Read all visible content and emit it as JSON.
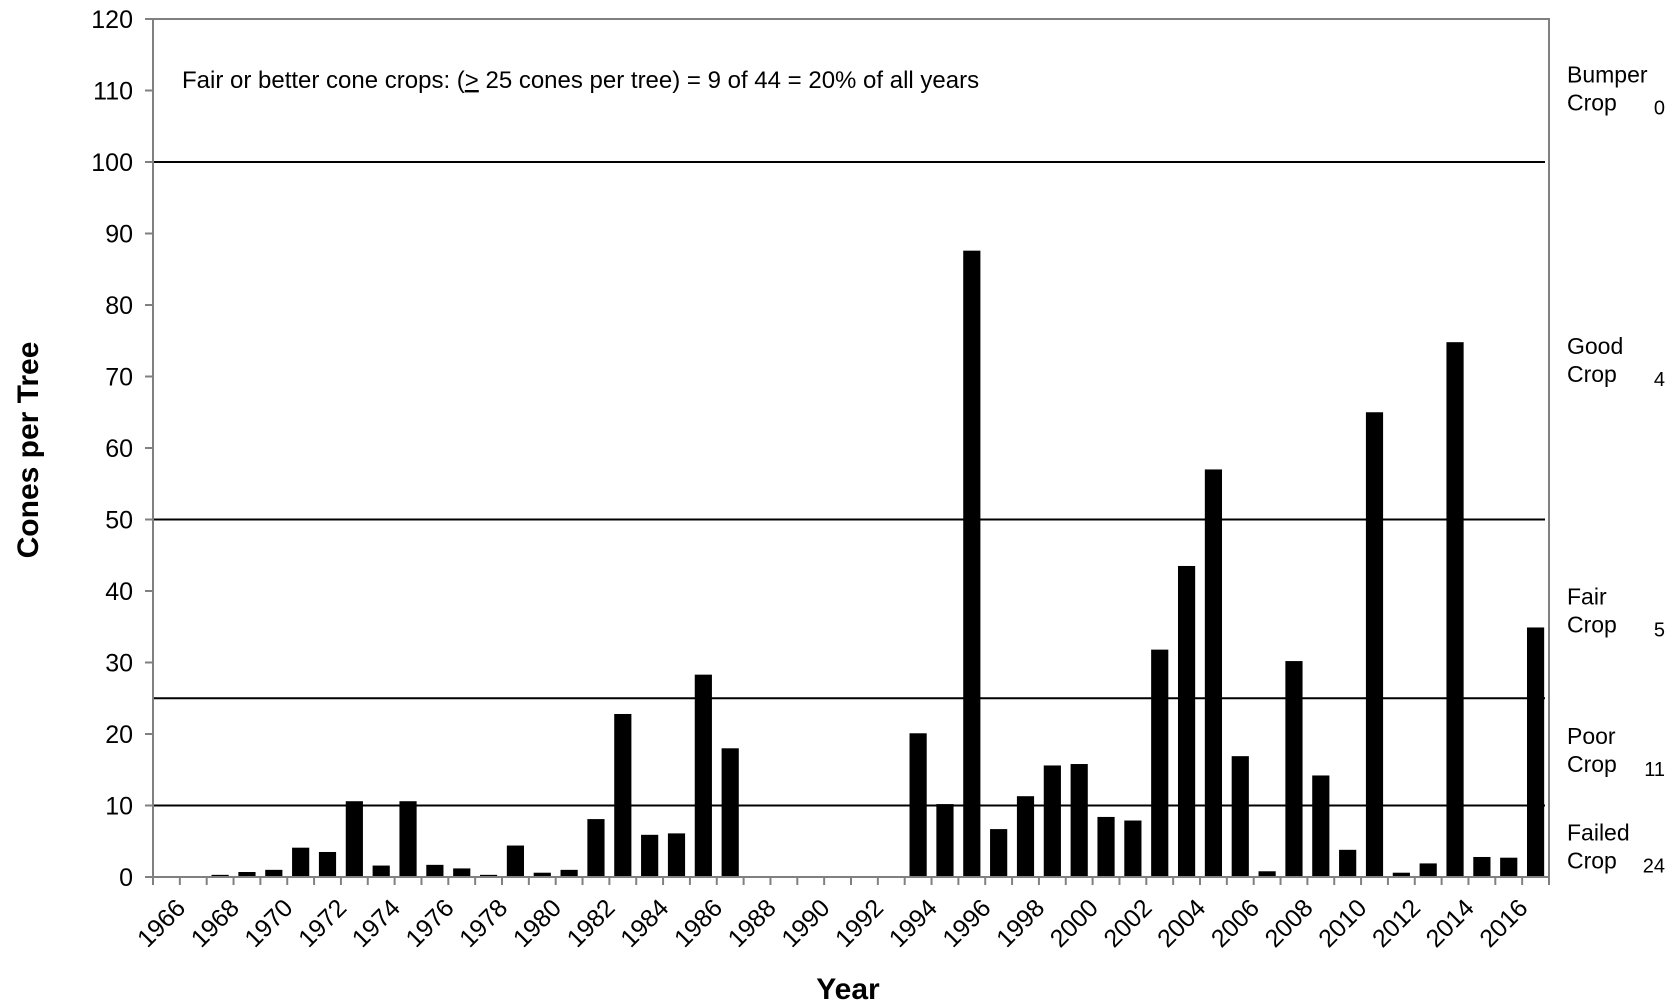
{
  "chart_data": {
    "type": "bar",
    "title": "",
    "xlabel": "Year",
    "ylabel": "Cones per Tree",
    "ylim": [
      0,
      120
    ],
    "yticks": [
      "0",
      "10",
      "20",
      "30",
      "40",
      "50",
      "60",
      "70",
      "80",
      "90",
      "100",
      "110",
      "120"
    ],
    "grid": false,
    "bar_color": "#000000",
    "xtick_labels": [
      "1966",
      "1968",
      "1970",
      "1972",
      "1974",
      "1976",
      "1978",
      "1980",
      "1982",
      "1984",
      "1986",
      "1988",
      "1990",
      "1992",
      "1994",
      "1996",
      "1998",
      "2000",
      "2002",
      "2004",
      "2006",
      "2008",
      "2010",
      "2012",
      "2014",
      "2016"
    ],
    "categories": [
      "1966",
      "1967",
      "1968",
      "1969",
      "1970",
      "1971",
      "1972",
      "1973",
      "1974",
      "1975",
      "1976",
      "1977",
      "1978",
      "1979",
      "1980",
      "1981",
      "1982",
      "1983",
      "1984",
      "1985",
      "1986",
      "1987",
      "1988",
      "1989",
      "1990",
      "1991",
      "1992",
      "1993",
      "1994",
      "1995",
      "1996",
      "1997",
      "1998",
      "1999",
      "2000",
      "2001",
      "2002",
      "2003",
      "2004",
      "2005",
      "2006",
      "2007",
      "2008",
      "2009",
      "2010",
      "2011",
      "2012",
      "2013",
      "2014",
      "2015",
      "2016",
      "2017"
    ],
    "values": [
      0,
      0,
      0.3,
      0.7,
      1.0,
      4.1,
      3.5,
      10.6,
      1.6,
      10.6,
      1.7,
      1.2,
      0.3,
      4.4,
      0.6,
      1.0,
      8.1,
      22.8,
      5.9,
      6.1,
      28.3,
      18.0,
      0,
      0,
      0,
      0,
      0,
      0,
      20.1,
      10.2,
      87.6,
      6.7,
      11.3,
      15.6,
      15.8,
      8.4,
      7.9,
      31.8,
      43.5,
      57.0,
      16.9,
      0.8,
      30.2,
      14.2,
      3.8,
      65.0,
      0.6,
      1.9,
      74.8,
      2.8,
      2.7,
      34.9
    ],
    "reference_lines": [
      10,
      25,
      50,
      100
    ],
    "annotation": "Fair or better cone crops: (> 25 cones per tree) = 9 of 44 = 20% of all years",
    "crop_classes": [
      {
        "line1": "Bumper",
        "line2": "Crop",
        "count": "0",
        "ymid": 110
      },
      {
        "line1": "Good",
        "line2": "Crop",
        "count": "4",
        "ymid": 72
      },
      {
        "line1": "Fair",
        "line2": "Crop",
        "count": "5",
        "ymid": 37
      },
      {
        "line1": "Poor",
        "line2": "Crop",
        "count": "11",
        "ymid": 17.5
      },
      {
        "line1": "Failed",
        "line2": "Crop",
        "count": "24",
        "ymid": 4
      }
    ]
  }
}
